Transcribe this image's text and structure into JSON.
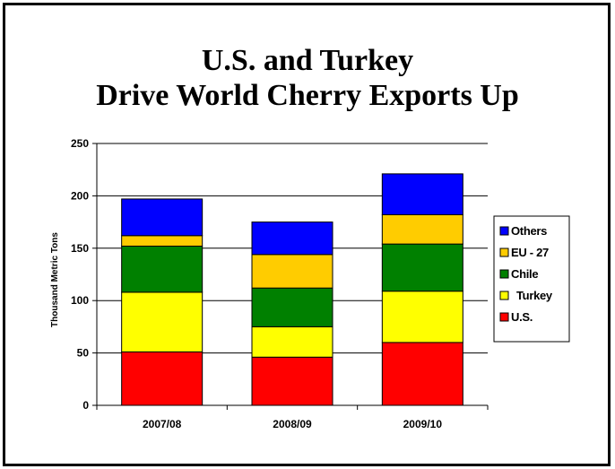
{
  "chart_data": {
    "type": "bar",
    "stacked": true,
    "title": "U.S. and Turkey",
    "subtitle": "Drive World Cherry Exports Up",
    "ylabel": "Thousand Metric Tons",
    "xlabel": "",
    "categories": [
      "2007/08",
      "2008/09",
      "2009/10"
    ],
    "ylim": [
      0,
      250
    ],
    "yticks": [
      0,
      50,
      100,
      150,
      200,
      250
    ],
    "grid": true,
    "legend_position": "right",
    "series": [
      {
        "name": "U.S.",
        "color": "#ff0000",
        "values": [
          51,
          46,
          60
        ]
      },
      {
        "name": "Turkey",
        "color": "#ffff00",
        "values": [
          57,
          29,
          49
        ]
      },
      {
        "name": "Chile",
        "color": "#008000",
        "values": [
          44,
          37,
          45
        ]
      },
      {
        "name": "EU - 27",
        "color": "#ffcc00",
        "values": [
          10,
          32,
          28
        ]
      },
      {
        "name": "Others",
        "color": "#0000ff",
        "values": [
          35,
          31,
          39
        ]
      }
    ],
    "legend_order": [
      "Others",
      "EU - 27",
      "Chile",
      "Turkey",
      "U.S."
    ]
  }
}
